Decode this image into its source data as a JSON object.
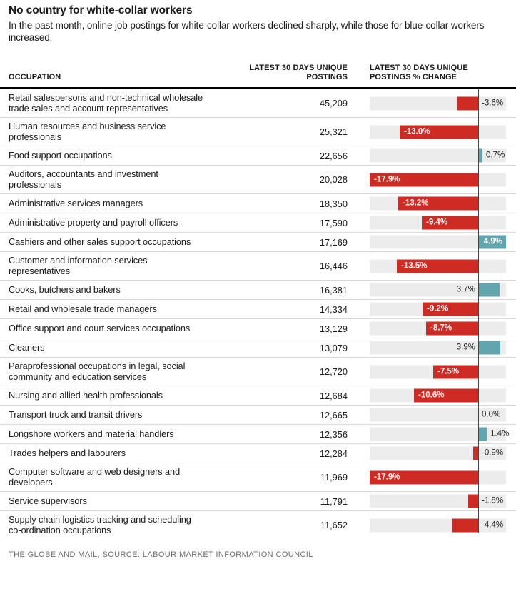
{
  "header": {
    "title": "No country for white-collar workers",
    "subtitle": "In the past month, online job postings for white-collar workers declined sharply, while those for blue-collar workers increased."
  },
  "columns": {
    "occupation": "OCCUPATION",
    "postings": "LATEST 30 DAYS UNIQUE POSTINGS",
    "change": "LATEST 30 DAYS UNIQUE POSTINGS % CHANGE"
  },
  "chart_data": {
    "type": "bar",
    "orientation": "horizontal",
    "title": "No country for white-collar workers",
    "categories": [
      "Retail salespersons and non-technical wholesale trade sales and account representatives",
      "Human resources and business service professionals",
      "Food support occupations",
      "Auditors, accountants and investment professionals",
      "Administrative services managers",
      "Administrative property and payroll officers",
      "Cashiers and other sales support occupations",
      "Customer and information services representatives",
      "Cooks, butchers and bakers",
      "Retail and wholesale trade managers",
      "Office support and court services occupations",
      "Cleaners",
      "Paraprofessional occupations in legal, social community and education services",
      "Nursing and allied health professionals",
      "Transport truck and transit drivers",
      "Longshore workers and material handlers",
      "Trades helpers and labourers",
      "Computer software and web designers and developers",
      "Service supervisors",
      "Supply chain logistics tracking and scheduling co-ordination occupations"
    ],
    "series": [
      {
        "name": "Latest 30 days unique postings",
        "values": [
          45209,
          25321,
          22656,
          20028,
          18350,
          17590,
          17169,
          16446,
          16381,
          14334,
          13129,
          13079,
          12720,
          12684,
          12665,
          12356,
          12284,
          11969,
          11791,
          11652
        ]
      },
      {
        "name": "Latest 30 days unique postings % change",
        "values": [
          -3.6,
          -13.0,
          0.7,
          -17.9,
          -13.2,
          -9.4,
          4.9,
          -13.5,
          3.7,
          -9.2,
          -8.7,
          3.9,
          -7.5,
          -10.6,
          0.0,
          1.4,
          -0.9,
          -17.9,
          -1.8,
          -4.4
        ]
      }
    ],
    "postings_labels": [
      "45,209",
      "25,321",
      "22,656",
      "20,028",
      "18,350",
      "17,590",
      "17,169",
      "16,446",
      "16,381",
      "14,334",
      "13,129",
      "13,079",
      "12,720",
      "12,684",
      "12,665",
      "12,356",
      "12,284",
      "11,969",
      "11,791",
      "11,652"
    ],
    "pct_labels": [
      "-3.6%",
      "-13.0%",
      "0.7%",
      "-17.9%",
      "-13.2%",
      "-9.4%",
      "4.9%",
      "-13.5%",
      "3.7%",
      "-9.2%",
      "-8.7%",
      "3.9%",
      "-7.5%",
      "-10.6%",
      "0.0%",
      "1.4%",
      "-0.9%",
      "-17.9%",
      "-1.8%",
      "-4.4%"
    ],
    "xlim_pct": [
      -17.9,
      4.9
    ],
    "grid": false,
    "negative_color": "#cf2b25",
    "positive_color": "#61a6ae",
    "track_color": "#ececec"
  },
  "footer": {
    "credit": "THE GLOBE AND MAIL, SOURCE: LABOUR MARKET INFORMATION COUNCIL"
  }
}
